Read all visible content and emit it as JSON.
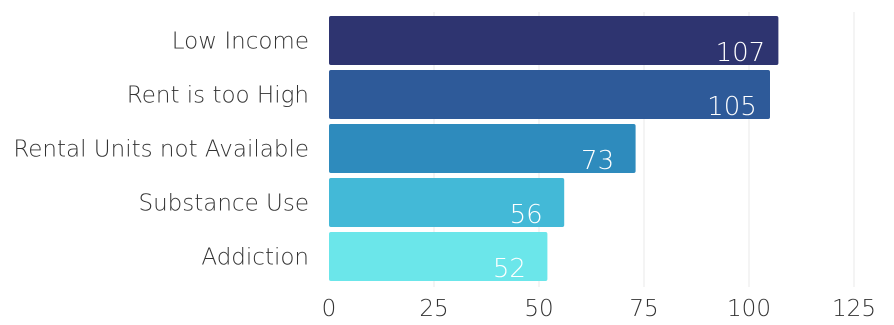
{
  "chart_data": {
    "type": "bar",
    "orientation": "horizontal",
    "categories": [
      "Low Income",
      "Rent is too High",
      "Rental Units not Available",
      "Substance Use",
      "Addiction"
    ],
    "values": [
      107,
      105,
      73,
      56,
      52
    ],
    "data_labels": [
      "107",
      "105",
      "73",
      "56",
      "52"
    ],
    "colors": [
      "#2e3470",
      "#2e5a99",
      "#2e8bbd",
      "#43b9d7",
      "#6be6ea"
    ],
    "xlim": [
      0,
      125
    ],
    "xticks": [
      0,
      25,
      50,
      75,
      100,
      125
    ],
    "xtick_labels": [
      "0",
      "25",
      "50",
      "75",
      "100",
      "125"
    ],
    "grid": true,
    "title": "",
    "xlabel": "",
    "ylabel": "",
    "legend": "none"
  }
}
